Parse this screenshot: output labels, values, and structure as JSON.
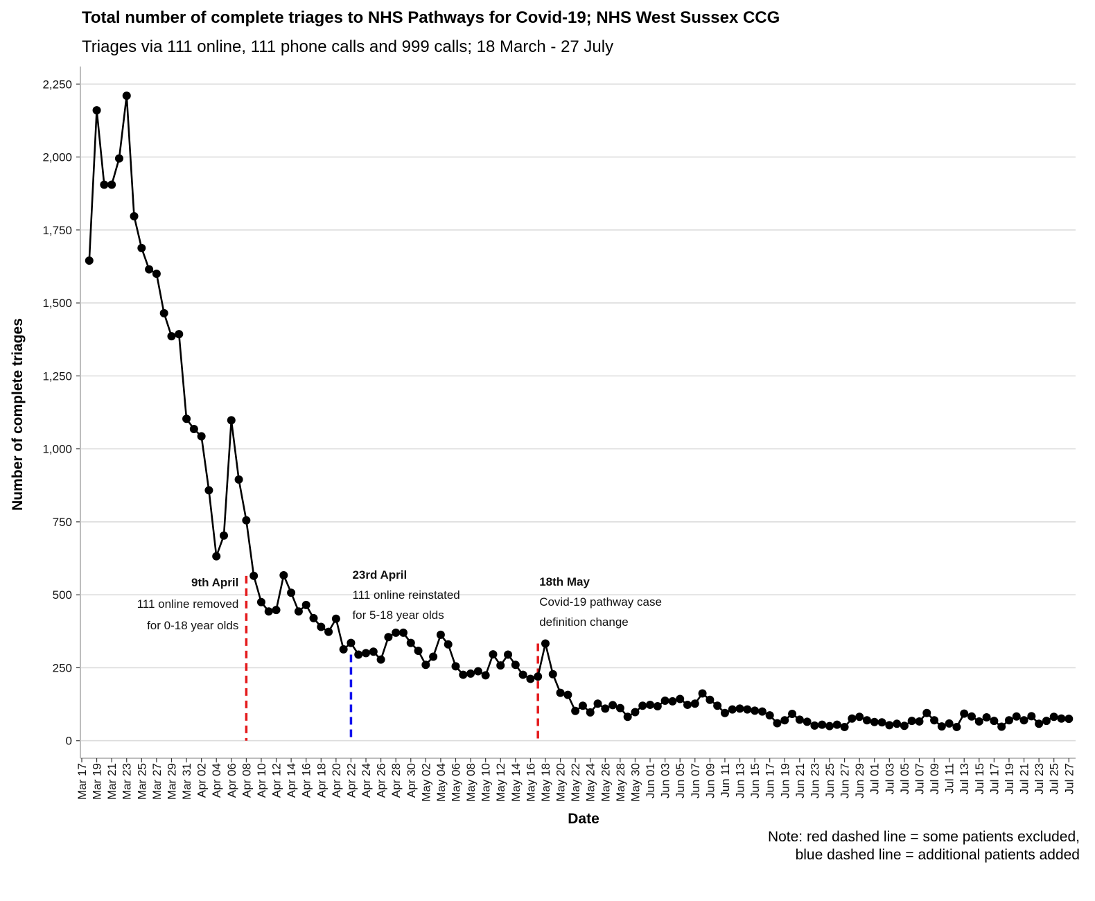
{
  "chart_data": {
    "type": "line",
    "title": "Total number of complete triages to NHS Pathways for Covid-19; NHS West Sussex CCG",
    "subtitle": "Triages via 111 online, 111 phone calls and 999 calls; 18 March - 27 July",
    "xlabel": "Date",
    "ylabel": "Number of complete triages",
    "ylim": [
      -60,
      2310
    ],
    "y_ticks": [
      0,
      250,
      500,
      750,
      1000,
      1250,
      1500,
      1750,
      2000,
      2250
    ],
    "y_tick_labels": [
      "0",
      "250",
      "500",
      "750",
      "1,000",
      "1,250",
      "1,500",
      "1,750",
      "2,000",
      "2,250"
    ],
    "x_ticks": [
      "Mar 17",
      "Mar 19",
      "Mar 21",
      "Mar 23",
      "Mar 25",
      "Mar 27",
      "Mar 29",
      "Mar 31",
      "Apr 02",
      "Apr 04",
      "Apr 06",
      "Apr 08",
      "Apr 10",
      "Apr 12",
      "Apr 14",
      "Apr 16",
      "Apr 18",
      "Apr 20",
      "Apr 22",
      "Apr 24",
      "Apr 26",
      "Apr 28",
      "Apr 30",
      "May 02",
      "May 04",
      "May 06",
      "May 08",
      "May 10",
      "May 12",
      "May 14",
      "May 16",
      "May 18",
      "May 20",
      "May 22",
      "May 24",
      "May 26",
      "May 28",
      "May 30",
      "Jun 01",
      "Jun 03",
      "Jun 05",
      "Jun 07",
      "Jun 09",
      "Jun 11",
      "Jun 13",
      "Jun 15",
      "Jun 17",
      "Jun 19",
      "Jun 21",
      "Jun 23",
      "Jun 25",
      "Jun 27",
      "Jun 29",
      "Jul 01",
      "Jul 03",
      "Jul 05",
      "Jul 07",
      "Jul 09",
      "Jul 11",
      "Jul 13",
      "Jul 15",
      "Jul 17",
      "Jul 19",
      "Jul 21",
      "Jul 23",
      "Jul 25",
      "Jul 27"
    ],
    "x_start_date": "Mar 18",
    "series": [
      {
        "name": "Complete triages",
        "color": "#000000",
        "values": [
          1645,
          2160,
          1905,
          1905,
          1995,
          2210,
          1797,
          1688,
          1615,
          1600,
          1465,
          1386,
          1393,
          1103,
          1068,
          1043,
          858,
          632,
          703,
          1098,
          895,
          755,
          565,
          475,
          443,
          448,
          567,
          507,
          443,
          465,
          420,
          390,
          373,
          418,
          313,
          335,
          295,
          300,
          305,
          278,
          355,
          370,
          370,
          335,
          308,
          260,
          288,
          363,
          330,
          255,
          226,
          230,
          238,
          224,
          296,
          258,
          295,
          260,
          226,
          212,
          220,
          333,
          228,
          164,
          157,
          102,
          120,
          97,
          127,
          110,
          122,
          112,
          82,
          98,
          120,
          123,
          118,
          137,
          135,
          143,
          123,
          127,
          162,
          140,
          120,
          95,
          107,
          110,
          107,
          103,
          100,
          87,
          60,
          70,
          92,
          72,
          65,
          52,
          55,
          50,
          55,
          47,
          76,
          82,
          70,
          64,
          63,
          53,
          58,
          51,
          68,
          66,
          95,
          70,
          49,
          59,
          47,
          93,
          83,
          66,
          80,
          68,
          48,
          70,
          83,
          70,
          84,
          58,
          68,
          82,
          76,
          75
        ]
      }
    ],
    "annotations": [
      {
        "date_label": "9th April",
        "day_index": 22,
        "color": "#e41a1c",
        "line_top": 565,
        "text_lines": [
          "111 online removed",
          "for 0-18 year olds"
        ],
        "align": "right"
      },
      {
        "date_label": "23rd April",
        "day_index": 36,
        "color": "#1111ee",
        "line_top": 295,
        "text_lines": [
          "111 online reinstated",
          "for 5-18 year olds"
        ],
        "align": "left"
      },
      {
        "date_label": "18th May",
        "day_index": 61,
        "color": "#e41a1c",
        "line_top": 333,
        "text_lines": [
          "Covid-19 pathway case",
          "definition change"
        ],
        "align": "left"
      }
    ],
    "notes": [
      "Note: red dashed line = some patients excluded,",
      "blue dashed line = additional patients added"
    ]
  }
}
